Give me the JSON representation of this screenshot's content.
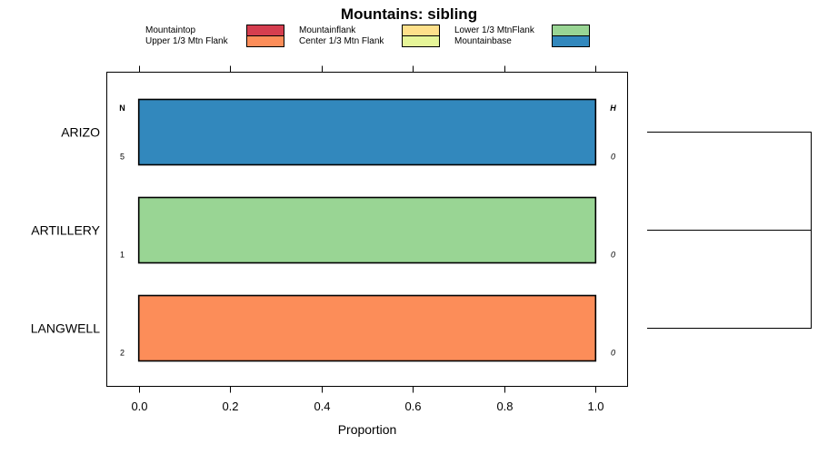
{
  "chart_data": {
    "type": "bar",
    "orientation": "horizontal",
    "stacked": true,
    "title": "Mountains: sibling",
    "xlabel": "Proportion",
    "ylabel": "",
    "xlim": [
      -0.07,
      1.07
    ],
    "x_ticks": [
      0.0,
      0.2,
      0.4,
      0.6,
      0.8,
      1.0
    ],
    "x_tick_labels": [
      "0.0",
      "0.2",
      "0.4",
      "0.6",
      "0.8",
      "1.0"
    ],
    "categories": [
      "ARIZO",
      "ARTILLERY",
      "LANGWELL"
    ],
    "n_header": "N",
    "h_header": "H",
    "n_values": [
      "5",
      "1",
      "2"
    ],
    "h_values": [
      "0",
      "0",
      "0"
    ],
    "legend_position": "top",
    "series": [
      {
        "name": "Mountaintop",
        "color": "#d53e4f",
        "values": [
          0,
          0,
          0
        ]
      },
      {
        "name": "Upper 1/3 Mtn Flank",
        "color": "#fc8d59",
        "values": [
          0,
          0,
          1
        ]
      },
      {
        "name": "Mountainflank",
        "color": "#fee08b",
        "values": [
          0,
          0,
          0
        ]
      },
      {
        "name": "Center 1/3 Mtn Flank",
        "color": "#e6f598",
        "values": [
          0,
          0,
          0
        ]
      },
      {
        "name": "Lower 1/3 MtnFlank",
        "color": "#99d594",
        "values": [
          0,
          1,
          0
        ]
      },
      {
        "name": "Mountainbase",
        "color": "#3288bd",
        "values": [
          1,
          0,
          0
        ]
      }
    ]
  }
}
